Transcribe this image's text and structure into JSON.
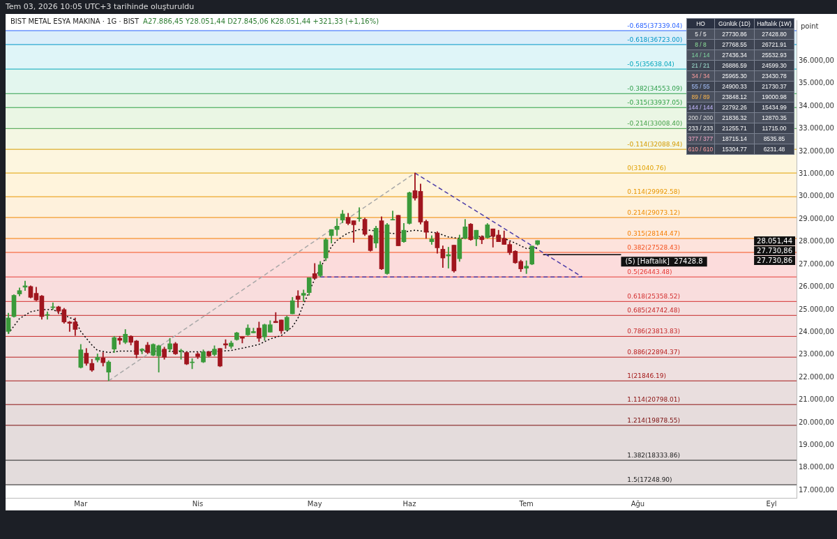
{
  "chart_data": [
    {
      "type": "candlestick",
      "title": "BIST METAL ESYA MAKINA · 1G · BIST",
      "subtitle": "A27.886,45  Y28.051,44  D27.845,06  K28.051,44  +321,33 (+1,16%)",
      "ylabel": "point",
      "annotations": [
        "Tem 03, 2026 10:05 UTC+3 tarihinde oluşturuldu",
        "28.051,44",
        "27.730,86",
        "27.730,86",
        {
          "text": "(5) [Haftalık]  27428.8",
          "y": 27428.8
        }
      ],
      "categories": [
        null,
        null,
        null,
        null,
        null,
        null,
        null,
        null,
        null,
        null,
        null,
        null,
        null,
        "Mar",
        null,
        null,
        null,
        null,
        null,
        null,
        null,
        null,
        null,
        null,
        null,
        null,
        null,
        null,
        null,
        null,
        null,
        null,
        null,
        null,
        "Nis",
        null,
        null,
        null,
        null,
        null,
        null,
        null,
        null,
        null,
        null,
        null,
        null,
        null,
        null,
        null,
        null,
        null,
        null,
        null,
        null,
        "May",
        null,
        null,
        null,
        null,
        null,
        null,
        null,
        null,
        null,
        null,
        null,
        null,
        null,
        null,
        null,
        null,
        "Haz",
        null,
        null,
        null,
        null,
        null,
        null,
        null,
        null,
        null,
        null,
        null,
        null,
        null,
        null,
        null,
        null,
        null,
        null,
        null,
        null,
        "Tem",
        null,
        null,
        null,
        null,
        null,
        null,
        null,
        null,
        null,
        null,
        null,
        null,
        null,
        null,
        null,
        null,
        null,
        null,
        null,
        "Ağu",
        null,
        null,
        null,
        null,
        null,
        null,
        null,
        null,
        null,
        null,
        null,
        null,
        null,
        null,
        null,
        null,
        null,
        null,
        null,
        null,
        null,
        null,
        null,
        "Eyl",
        null,
        null,
        null,
        null
      ],
      "ylim": [
        16670,
        37800
      ],
      "yticks": [
        {
          "value": 17000,
          "label": "17.000,00"
        },
        {
          "value": 18000,
          "label": "18.000,00"
        },
        {
          "value": 19000,
          "label": "19.000,00"
        },
        {
          "value": 20000,
          "label": "20.000,00"
        },
        {
          "value": 21000,
          "label": "21.000,00"
        },
        {
          "value": 22000,
          "label": "22.000,00"
        },
        {
          "value": 23000,
          "label": "23.000,00"
        },
        {
          "value": 24000,
          "label": "24.000,00"
        },
        {
          "value": 25000,
          "label": "25.000,00"
        },
        {
          "value": 26000,
          "label": "26.000,00"
        },
        {
          "value": 27000,
          "label": "27.000,00"
        },
        {
          "value": 28000,
          "label": "28.000,00"
        },
        {
          "value": 29000,
          "label": "29.000,00"
        },
        {
          "value": 30000,
          "label": "30.000,00"
        },
        {
          "value": 31000,
          "label": "31.000,00"
        },
        {
          "value": 32000,
          "label": "32.000,00"
        },
        {
          "value": 33000,
          "label": "33.000,00"
        },
        {
          "value": 34000,
          "label": "34.000,00"
        },
        {
          "value": 35000,
          "label": "35.000,00"
        },
        {
          "value": 36000,
          "label": "36.000,00"
        }
      ],
      "series": [
        {
          "type": "candlestick",
          "ohlc": [
            [
              24030,
              24840,
              23940,
              24630
            ],
            [
              24690,
              25660,
              24660,
              25630
            ],
            [
              25690,
              25960,
              25600,
              25840
            ],
            [
              25990,
              26260,
              25840,
              26050
            ],
            [
              26020,
              26050,
              25510,
              25540
            ],
            [
              25720,
              25990,
              25390,
              25420
            ],
            [
              25600,
              25630,
              24570,
              24690
            ],
            [
              24750,
              24900,
              24570,
              24780
            ],
            [
              25090,
              25300,
              25000,
              25120
            ],
            [
              25120,
              25150,
              24810,
              24930
            ],
            [
              25000,
              25060,
              24390,
              24450
            ],
            [
              24450,
              24480,
              24030,
              24390
            ],
            [
              24450,
              24630,
              23850,
              24120
            ],
            [
              22440,
              23460,
              22410,
              23220
            ],
            [
              23070,
              23280,
              22530,
              22620
            ],
            [
              22620,
              22800,
              22260,
              22320
            ],
            [
              22770,
              23040,
              22680,
              22890
            ],
            [
              22860,
              23100,
              22500,
              22650
            ],
            [
              22230,
              22740,
              21846,
              22680
            ],
            [
              23250,
              23820,
              23100,
              23760
            ],
            [
              23730,
              23820,
              23460,
              23640
            ],
            [
              23550,
              24120,
              23490,
              23910
            ],
            [
              23820,
              23850,
              23430,
              23550
            ],
            [
              23610,
              23640,
              22860,
              23010
            ],
            [
              23190,
              23280,
              23040,
              23250
            ],
            [
              23430,
              23550,
              23040,
              23100
            ],
            [
              22980,
              23490,
              22950,
              23460
            ],
            [
              22950,
              23430,
              22230,
              23400
            ],
            [
              23250,
              23340,
              22800,
              22890
            ],
            [
              23250,
              23730,
              23130,
              23490
            ],
            [
              23490,
              23550,
              23010,
              23040
            ],
            [
              23160,
              23250,
              22800,
              23190
            ],
            [
              23100,
              23130,
              22560,
              22590
            ],
            [
              22650,
              22830,
              22380,
              22680
            ],
            [
              23040,
              23100,
              22830,
              22920
            ],
            [
              22680,
              23220,
              22650,
              23130
            ],
            [
              23130,
              23160,
              22920,
              22950
            ],
            [
              23010,
              23400,
              22950,
              23250
            ],
            [
              23280,
              23280,
              22470,
              22500
            ],
            [
              23490,
              23670,
              23280,
              23430
            ],
            [
              23370,
              23610,
              23280,
              23520
            ],
            [
              23670,
              24000,
              23640,
              23970
            ],
            [
              23790,
              23790,
              23520,
              23730
            ],
            [
              23880,
              24330,
              23850,
              24180
            ],
            [
              23970,
              24180,
              23970,
              24030
            ],
            [
              24180,
              24450,
              23580,
              23730
            ],
            [
              23790,
              24360,
              23640,
              24330
            ],
            [
              24000,
              24510,
              24000,
              24330
            ],
            [
              24480,
              24870,
              24420,
              24420
            ],
            [
              24540,
              24540,
              23940,
              24060
            ],
            [
              24090,
              24720,
              24090,
              24660
            ],
            [
              24810,
              25540,
              24810,
              25390
            ],
            [
              25600,
              25840,
              25090,
              25450
            ],
            [
              25630,
              25870,
              25360,
              25720
            ],
            [
              25750,
              26410,
              25630,
              26410
            ],
            [
              26590,
              27040,
              26380,
              26380
            ],
            [
              26500,
              27130,
              26440,
              26980
            ],
            [
              27280,
              28150,
              27160,
              28090
            ],
            [
              28270,
              28540,
              27940,
              28540
            ],
            [
              28540,
              29020,
              28270,
              28690
            ],
            [
              28960,
              29390,
              28840,
              29230
            ],
            [
              29080,
              29260,
              28750,
              28810
            ],
            [
              28930,
              28930,
              27970,
              28750
            ],
            [
              29020,
              29510,
              28900,
              29050
            ],
            [
              28990,
              29050,
              28270,
              28330
            ],
            [
              28270,
              28300,
              27580,
              27610
            ],
            [
              27940,
              28690,
              27730,
              28600
            ],
            [
              28930,
              29110,
              26770,
              26800
            ],
            [
              26590,
              28810,
              26560,
              28750
            ],
            [
              28960,
              29360,
              28960,
              28990
            ],
            [
              29170,
              29170,
              27820,
              27820
            ],
            [
              28000,
              28810,
              27970,
              28510
            ],
            [
              28810,
              30200,
              28780,
              30170
            ],
            [
              30260,
              31040.76,
              29840,
              29930
            ],
            [
              30230,
              30560,
              28780,
              28870
            ],
            [
              28900,
              28960,
              28150,
              28420
            ],
            [
              28000,
              28270,
              27880,
              28120
            ],
            [
              28390,
              28450,
              27490,
              27730
            ],
            [
              27670,
              27820,
              26860,
              27280
            ],
            [
              27370,
              27760,
              26830,
              27430
            ],
            [
              27850,
              27850,
              26650,
              26710
            ],
            [
              27250,
              28300,
              27130,
              28120
            ],
            [
              28150,
              28990,
              28120,
              28660
            ],
            [
              28780,
              28810,
              28060,
              28090
            ],
            [
              28120,
              28510,
              27820,
              28510
            ],
            [
              28210,
              28270,
              27910,
              28090
            ],
            [
              28180,
              28810,
              28150,
              28750
            ],
            [
              28570,
              28570,
              27760,
              28240
            ],
            [
              28300,
              28510,
              28000,
              28000
            ],
            [
              28150,
              28480,
              27880,
              27880
            ],
            [
              27880,
              28000,
              27430,
              27520
            ],
            [
              27580,
              27610,
              27040,
              27070
            ],
            [
              27130,
              27190,
              26680,
              26800
            ],
            [
              26830,
              27160,
              26590,
              26920
            ],
            [
              27010,
              27810,
              26980,
              27810
            ],
            [
              27886.45,
              28051.44,
              27845.06,
              28051.44
            ],
            null,
            null,
            null,
            null,
            null,
            null,
            null,
            null,
            null,
            null,
            null,
            null,
            null,
            null,
            null,
            null,
            null,
            null,
            null,
            null,
            null,
            null,
            null,
            null,
            null,
            null,
            null,
            null,
            null,
            null,
            null,
            null,
            null,
            null,
            null,
            null,
            null,
            null,
            null,
            null,
            null,
            null,
            null,
            null,
            null,
            null
          ],
          "colors": [
            "#3a9a3a",
            "#3a9a3a",
            "#3a9a3a",
            "#3a9a3a",
            "#a0151e",
            "#a0151e",
            "#a0151e",
            "#3a9a3a",
            "#3a9a3a",
            "#a0151e",
            "#a0151e",
            "#a0151e",
            "#a0151e",
            "#3a9a3a",
            "#a0151e",
            "#a0151e",
            "#3a9a3a",
            "#a0151e",
            "#3a9a3a",
            "#3a9a3a",
            "#a0151e",
            "#3a9a3a",
            "#a0151e",
            "#a0151e",
            "#3a9a3a",
            "#a0151e",
            "#3a9a3a",
            "#3a9a3a",
            "#a0151e",
            "#3a9a3a",
            "#a0151e",
            "#3a9a3a",
            "#a0151e",
            "#3a9a3a",
            "#a0151e",
            "#3a9a3a",
            "#a0151e",
            "#3a9a3a",
            "#a0151e",
            "#a0151e",
            "#3a9a3a",
            "#3a9a3a",
            "#a0151e",
            "#3a9a3a",
            "#3a9a3a",
            "#a0151e",
            "#3a9a3a",
            "#3a9a3a",
            "#a0151e",
            "#a0151e",
            "#3a9a3a",
            "#3a9a3a",
            "#a0151e",
            "#3a9a3a",
            "#3a9a3a",
            "#a0151e",
            "#3a9a3a",
            "#3a9a3a",
            "#3a9a3a",
            "#3a9a3a",
            "#3a9a3a",
            "#a0151e",
            "#a0151e",
            "#3a9a3a",
            "#a0151e",
            "#a0151e",
            "#3a9a3a",
            "#a0151e",
            "#3a9a3a",
            "#3a9a3a",
            "#a0151e",
            "#3a9a3a",
            "#3a9a3a",
            "#a0151e",
            "#a0151e",
            "#a0151e",
            "#3a9a3a",
            "#a0151e",
            "#a0151e",
            "#3a9a3a",
            "#a0151e",
            "#3a9a3a",
            "#3a9a3a",
            "#a0151e",
            "#3a9a3a",
            "#a0151e",
            "#3a9a3a",
            "#a0151e",
            "#a0151e",
            "#a0151e",
            "#a0151e",
            "#a0151e",
            "#a0151e",
            "#3a9a3a",
            "#3a9a3a",
            "#3a9a3a",
            null,
            null,
            null,
            null,
            null,
            null,
            null,
            null,
            null,
            null,
            null,
            null,
            null,
            null,
            null,
            null,
            null,
            null,
            null,
            null,
            null,
            null,
            null,
            null,
            null,
            null,
            null,
            null,
            null,
            null,
            null,
            null,
            null,
            null,
            null,
            null,
            null,
            null,
            null,
            null,
            null,
            null,
            null,
            null,
            null,
            null
          ]
        },
        {
          "type": "line",
          "color": "#000000",
          "line_style": "dotted",
          "marker": "none",
          "values": [
            23940,
            null,
            24600,
            null,
            24900,
            null,
            25000,
            null,
            25000,
            null,
            24750,
            null,
            24540,
            24030,
            23730,
            23430,
            23190,
            null,
            23100,
            null,
            23160,
            null,
            null,
            null,
            23160,
            null,
            null,
            null,
            23160,
            null,
            null,
            null,
            23130,
            null,
            null,
            null,
            23130,
            null,
            null,
            null,
            23190,
            null,
            null,
            23340,
            null,
            23460,
            null,
            23700,
            null,
            23850,
            null,
            24240,
            24630,
            25240,
            null,
            26350,
            null,
            null,
            27790,
            28060,
            28240,
            28390,
            null,
            28540,
            null,
            28510,
            null,
            null,
            null,
            28360,
            null,
            null,
            null,
            28510,
            null,
            null,
            null,
            28390,
            null,
            28210,
            null,
            28150,
            null,
            null,
            null,
            28240,
            null,
            28240,
            null,
            28150,
            null,
            27940,
            null,
            27700,
            null,
            27730.86,
            null,
            null,
            null,
            null,
            null,
            null,
            null,
            null,
            null,
            null,
            null,
            null,
            null,
            null,
            null,
            null,
            null,
            null,
            null,
            null,
            null,
            null,
            null,
            null,
            null,
            null,
            null,
            null,
            null,
            null,
            null,
            null,
            null,
            null,
            null,
            null,
            null,
            null,
            null,
            null,
            null,
            null,
            null,
            null,
            null,
            null
          ]
        },
        {
          "type": "line",
          "color": "#a8a8a8",
          "line_style": "dashed",
          "marker": "none",
          "values": [
            null,
            null,
            null,
            null,
            null,
            null,
            null,
            null,
            null,
            null,
            null,
            null,
            null,
            null,
            null,
            null,
            null,
            null,
            21846.19,
            null,
            null,
            null,
            null,
            null,
            null,
            null,
            null,
            null,
            null,
            null,
            null,
            null,
            null,
            null,
            null,
            null,
            null,
            null,
            null,
            null,
            null,
            null,
            null,
            null,
            null,
            null,
            null,
            null,
            null,
            null,
            null,
            null,
            null,
            null,
            null,
            null,
            null,
            null,
            null,
            null,
            null,
            null,
            null,
            null,
            null,
            null,
            null,
            null,
            null,
            null,
            null,
            null,
            null,
            31040.76,
            null,
            null,
            null,
            null,
            null,
            null,
            null,
            null,
            null,
            null,
            null,
            null,
            null,
            null,
            null,
            null,
            null,
            null,
            null,
            null,
            null,
            null,
            null,
            null,
            null,
            null,
            null,
            null,
            null,
            null,
            null,
            null,
            null,
            null,
            null,
            null,
            null,
            null,
            null,
            null,
            null,
            null,
            null,
            null,
            null,
            null,
            null,
            null,
            null,
            null,
            null,
            null,
            null,
            null,
            null,
            null,
            null,
            null,
            null,
            null,
            null,
            null,
            null,
            null,
            null,
            null,
            null,
            null
          ]
        },
        {
          "type": "line",
          "color": "#4b3ba8",
          "line_style": "dashed",
          "marker": "none",
          "values": [
            null,
            null,
            null,
            null,
            null,
            null,
            null,
            null,
            null,
            null,
            null,
            null,
            null,
            null,
            null,
            null,
            null,
            null,
            null,
            null,
            null,
            null,
            null,
            null,
            null,
            null,
            null,
            null,
            null,
            null,
            null,
            null,
            null,
            null,
            null,
            null,
            null,
            null,
            null,
            null,
            null,
            null,
            null,
            null,
            null,
            null,
            null,
            null,
            null,
            null,
            null,
            null,
            null,
            null,
            null,
            null,
            null,
            null,
            null,
            null,
            null,
            null,
            null,
            null,
            null,
            null,
            null,
            null,
            null,
            null,
            null,
            null,
            null,
            31040.76,
            null,
            null,
            null,
            null,
            null,
            null,
            null,
            null,
            null,
            null,
            null,
            null,
            null,
            null,
            null,
            null,
            null,
            null,
            null,
            null,
            null,
            null,
            null,
            null,
            null,
            null,
            null,
            null,
            null,
            26443.48,
            null,
            null,
            null,
            null,
            null,
            null,
            null,
            null,
            null,
            null,
            null,
            null,
            null,
            null,
            null,
            null,
            null,
            null,
            null,
            null,
            null,
            null,
            null,
            null,
            null,
            null,
            null,
            null,
            null,
            null,
            null,
            null,
            null,
            null,
            null,
            null,
            null,
            null
          ]
        },
        {
          "type": "line",
          "color": "#4b3ba8",
          "line_style": "dashed",
          "marker": "none",
          "values": [
            null,
            null,
            null,
            null,
            null,
            null,
            null,
            null,
            null,
            null,
            null,
            null,
            null,
            null,
            null,
            null,
            null,
            null,
            null,
            null,
            null,
            null,
            null,
            null,
            null,
            null,
            null,
            null,
            null,
            null,
            null,
            null,
            null,
            null,
            null,
            null,
            null,
            null,
            null,
            null,
            null,
            null,
            null,
            null,
            null,
            null,
            null,
            null,
            null,
            null,
            null,
            null,
            null,
            null,
            null,
            null,
            26443.48,
            null,
            null,
            null,
            null,
            null,
            null,
            null,
            null,
            null,
            null,
            null,
            null,
            null,
            null,
            null,
            null,
            null,
            null,
            null,
            null,
            null,
            null,
            null,
            null,
            null,
            null,
            null,
            null,
            null,
            null,
            null,
            null,
            null,
            null,
            null,
            null,
            null,
            null,
            null,
            null,
            null,
            null,
            null,
            null,
            null,
            null,
            26443.48,
            null,
            null,
            null,
            null,
            null,
            null,
            null,
            null,
            null,
            null,
            null,
            null,
            null,
            null,
            null,
            null,
            null,
            null,
            null,
            null,
            null,
            null,
            null,
            null,
            null,
            null,
            null,
            null,
            null,
            null,
            null,
            null,
            null,
            null,
            null,
            null,
            null,
            null
          ]
        },
        {
          "type": "line",
          "color": "#000000",
          "line_style": "solid",
          "marker": "none",
          "values": [
            null,
            null,
            null,
            null,
            null,
            null,
            null,
            null,
            null,
            null,
            null,
            null,
            null,
            null,
            null,
            null,
            null,
            null,
            null,
            null,
            null,
            null,
            null,
            null,
            null,
            null,
            null,
            null,
            null,
            null,
            null,
            null,
            null,
            null,
            null,
            null,
            null,
            null,
            null,
            null,
            null,
            null,
            null,
            null,
            null,
            null,
            null,
            null,
            null,
            null,
            null,
            null,
            null,
            null,
            null,
            null,
            null,
            null,
            null,
            null,
            null,
            null,
            null,
            null,
            null,
            null,
            null,
            null,
            null,
            null,
            null,
            null,
            null,
            null,
            null,
            null,
            null,
            null,
            null,
            null,
            null,
            null,
            null,
            null,
            null,
            null,
            null,
            null,
            null,
            null,
            null,
            null,
            null,
            null,
            null,
            null,
            27428.8,
            null,
            null,
            null,
            null,
            null,
            null,
            null,
            null,
            null,
            null,
            null,
            null,
            null,
            27428.8,
            null,
            null,
            null,
            null,
            null,
            null,
            null,
            null,
            null,
            null,
            null,
            null,
            null,
            null,
            null,
            null,
            null,
            null,
            null,
            null,
            null,
            null,
            null,
            null,
            null,
            null,
            null,
            null,
            null,
            null,
            null
          ]
        }
      ],
      "bands": [
        {
          "axis": "y",
          "from": 36723.0,
          "to": 37339.04,
          "color": "#dbeefa"
        },
        {
          "axis": "y",
          "from": 35638.04,
          "to": 36723.0,
          "color": "#dff5f8"
        },
        {
          "axis": "y",
          "from": 34553.09,
          "to": 35638.04,
          "color": "#e3f6ee"
        },
        {
          "axis": "y",
          "from": 33937.05,
          "to": 34553.09,
          "color": "#e6f5e6"
        },
        {
          "axis": "y",
          "from": 33008.4,
          "to": 33937.05,
          "color": "#eaf6e4"
        },
        {
          "axis": "y",
          "from": 32088.94,
          "to": 33008.4,
          "color": "#f4f7e3"
        },
        {
          "axis": "y",
          "from": 31040.76,
          "to": 32088.94,
          "color": "#fdf6df"
        },
        {
          "axis": "y",
          "from": 29992.58,
          "to": 31040.76,
          "color": "#fff4dc"
        },
        {
          "axis": "y",
          "from": 29073.12,
          "to": 29992.58,
          "color": "#fef1dc"
        },
        {
          "axis": "y",
          "from": 28144.47,
          "to": 29073.12,
          "color": "#fdebdd"
        },
        {
          "axis": "y",
          "from": 27528.43,
          "to": 28144.47,
          "color": "#fde3dc"
        },
        {
          "axis": "y",
          "from": 26443.48,
          "to": 27528.43,
          "color": "#fcdcdc"
        },
        {
          "axis": "y",
          "from": 25358.52,
          "to": 26443.48,
          "color": "#f9dddd"
        },
        {
          "axis": "y",
          "from": 24742.48,
          "to": 25358.52,
          "color": "#f5dfdf"
        },
        {
          "axis": "y",
          "from": 23813.83,
          "to": 24742.48,
          "color": "#f3e0e0"
        },
        {
          "axis": "y",
          "from": 22894.37,
          "to": 23813.83,
          "color": "#f1e0e0"
        },
        {
          "axis": "y",
          "from": 21846.19,
          "to": 22894.37,
          "color": "#eee0e0"
        },
        {
          "axis": "y",
          "from": 20798.01,
          "to": 21846.19,
          "color": "#e9dede"
        },
        {
          "axis": "y",
          "from": 19878.55,
          "to": 20798.01,
          "color": "#e6dcdc"
        },
        {
          "axis": "y",
          "from": 18333.86,
          "to": 19878.55,
          "color": "#e4dcdc"
        },
        {
          "axis": "y",
          "from": 17248.9,
          "to": 18333.86,
          "color": "#e3dcdc"
        }
      ],
      "ref_lines": [
        {
          "axis": "y",
          "value": 37339.04,
          "label": "-0.685(37339.04)",
          "color": "#2962ff"
        },
        {
          "axis": "y",
          "value": 36723.0,
          "label": "-0.618(36723.00)",
          "color": "#0097c7"
        },
        {
          "axis": "y",
          "value": 35638.04,
          "label": "-0.5(35638.04)",
          "color": "#00a5bb"
        },
        {
          "axis": "y",
          "value": 34553.09,
          "label": "-0.382(34553.09)",
          "color": "#2e9e4a"
        },
        {
          "axis": "y",
          "value": 33937.05,
          "label": "-0.315(33937.05)",
          "color": "#2ea043"
        },
        {
          "axis": "y",
          "value": 33008.4,
          "label": "-0.214(33008.40)",
          "color": "#43a047"
        },
        {
          "axis": "y",
          "value": 32088.94,
          "label": "-0.114(32088.94)",
          "color": "#d49a00"
        },
        {
          "axis": "y",
          "value": 31040.76,
          "label": "0(31040.76)",
          "color": "#e0a000"
        },
        {
          "axis": "y",
          "value": 29992.58,
          "label": "0.114(29992.58)",
          "color": "#e89500"
        },
        {
          "axis": "y",
          "value": 29073.12,
          "label": "0.214(29073.12)",
          "color": "#ef8a00"
        },
        {
          "axis": "y",
          "value": 28144.47,
          "label": "0.315(28144.47)",
          "color": "#f57c00"
        },
        {
          "axis": "y",
          "value": 27528.43,
          "label": "0.382(27528.43)",
          "color": "#f4511e"
        },
        {
          "axis": "y",
          "value": 26443.48,
          "label": "0.5(26443.48)",
          "color": "#e53935"
        },
        {
          "axis": "y",
          "value": 25358.52,
          "label": "0.618(25358.52)",
          "color": "#d32f2f"
        },
        {
          "axis": "y",
          "value": 24742.48,
          "label": "0.685(24742.48)",
          "color": "#c62828"
        },
        {
          "axis": "y",
          "value": 23813.83,
          "label": "0.786(23813.83)",
          "color": "#c62828"
        },
        {
          "axis": "y",
          "value": 22894.37,
          "label": "0.886(22894.37)",
          "color": "#b71c1c"
        },
        {
          "axis": "y",
          "value": 21846.19,
          "label": "1(21846.19)",
          "color": "#a31515"
        },
        {
          "axis": "y",
          "value": 20798.01,
          "label": "1.114(20798.01)",
          "color": "#8b1010"
        },
        {
          "axis": "y",
          "value": 19878.55,
          "label": "1.214(19878.55)",
          "color": "#7a0c0c"
        },
        {
          "axis": "y",
          "value": 18333.86,
          "label": "1.382(18333.86)",
          "color": "#222222"
        },
        {
          "axis": "y",
          "value": 17248.9,
          "label": "1.5(17248.90)",
          "color": "#222222"
        }
      ]
    },
    {
      "type": "other",
      "categories": [
        "HO",
        "Günlük (1D)",
        "Haftalık (1W)"
      ],
      "colors": [
        "#f2f2f2",
        "#8fe39a",
        "#7fd6a0",
        "#9fe0d0",
        "#ff9e9e",
        "#a9c4ff",
        "#ffb74d",
        "#c4b8ff",
        "#e0e0e0",
        "#ffffff",
        "#f8a8c8",
        "#ffa0a0"
      ],
      "annotations": [
        "5 / 5",
        "27730.86",
        "27428.80",
        "8 / 8",
        "27768.55",
        "26721.91",
        "14 / 14",
        "27436.34",
        "25532.93",
        "21 / 21",
        "26886.59",
        "24599.30",
        "34 / 34",
        "25965.30",
        "23430.78",
        "55 / 55",
        "24900.33",
        "21730.37",
        "89 / 89",
        "23848.12",
        "19000.98",
        "144 / 144",
        "22792.26",
        "15434.99",
        "200 / 200",
        "21836.32",
        "12870.35",
        "233 / 233",
        "21255.71",
        "11715.00",
        "377 / 377",
        "18715.14",
        "8535.85",
        "610 / 610",
        "15304.77",
        "6231.48"
      ]
    }
  ]
}
